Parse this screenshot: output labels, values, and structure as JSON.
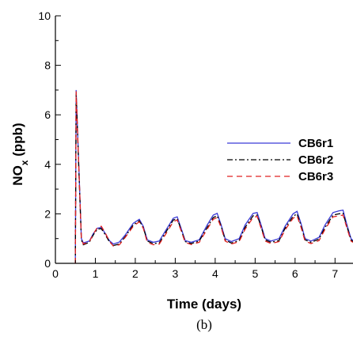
{
  "panel_label": "(b)",
  "chart_data": {
    "type": "line",
    "title": "",
    "xlabel": "Time (days)",
    "ylabel": "NOx (ppb)",
    "ylabel_main": "NO",
    "ylabel_sub": "x",
    "ylabel_unit": " (ppb)",
    "xlim": [
      0,
      7.45
    ],
    "ylim": [
      0,
      10
    ],
    "xticks": [
      0,
      1,
      2,
      3,
      4,
      5,
      6,
      7
    ],
    "yticks": [
      0,
      2,
      4,
      6,
      8,
      10
    ],
    "grid": false,
    "legend_position": "right-center",
    "series": [
      {
        "name": "CB6r1",
        "color": "#3b3bd6",
        "dash": "solid",
        "points": [
          [
            0.5,
            0
          ],
          [
            0.52,
            7.0
          ],
          [
            0.65,
            1.0
          ],
          [
            0.7,
            0.82
          ],
          [
            0.85,
            0.9
          ],
          [
            0.95,
            1.2
          ],
          [
            1.05,
            1.42
          ],
          [
            1.15,
            1.45
          ],
          [
            1.25,
            1.2
          ],
          [
            1.35,
            0.92
          ],
          [
            1.45,
            0.78
          ],
          [
            1.6,
            0.86
          ],
          [
            1.75,
            1.15
          ],
          [
            1.95,
            1.62
          ],
          [
            2.1,
            1.78
          ],
          [
            2.2,
            1.5
          ],
          [
            2.3,
            0.95
          ],
          [
            2.45,
            0.85
          ],
          [
            2.6,
            0.9
          ],
          [
            2.75,
            1.3
          ],
          [
            2.95,
            1.82
          ],
          [
            3.05,
            1.88
          ],
          [
            3.15,
            1.4
          ],
          [
            3.25,
            0.92
          ],
          [
            3.4,
            0.85
          ],
          [
            3.6,
            0.95
          ],
          [
            3.8,
            1.55
          ],
          [
            3.95,
            1.95
          ],
          [
            4.05,
            2.02
          ],
          [
            4.15,
            1.55
          ],
          [
            4.25,
            1.0
          ],
          [
            4.4,
            0.88
          ],
          [
            4.6,
            1.0
          ],
          [
            4.75,
            1.55
          ],
          [
            4.95,
            2.02
          ],
          [
            5.05,
            2.05
          ],
          [
            5.15,
            1.55
          ],
          [
            5.25,
            1.0
          ],
          [
            5.4,
            0.9
          ],
          [
            5.6,
            1.0
          ],
          [
            5.75,
            1.5
          ],
          [
            5.95,
            2.0
          ],
          [
            6.05,
            2.1
          ],
          [
            6.15,
            1.6
          ],
          [
            6.25,
            1.0
          ],
          [
            6.4,
            0.9
          ],
          [
            6.6,
            1.05
          ],
          [
            6.75,
            1.55
          ],
          [
            6.95,
            2.05
          ],
          [
            7.1,
            2.12
          ],
          [
            7.2,
            2.15
          ],
          [
            7.3,
            1.55
          ],
          [
            7.4,
            1.0
          ],
          [
            7.45,
            0.92
          ]
        ]
      },
      {
        "name": "CB6r2",
        "color": "#000000",
        "dash": "dashdot",
        "points": [
          [
            0.5,
            0
          ],
          [
            0.52,
            6.85
          ],
          [
            0.65,
            0.95
          ],
          [
            0.7,
            0.75
          ],
          [
            0.85,
            0.85
          ],
          [
            0.95,
            1.15
          ],
          [
            1.05,
            1.38
          ],
          [
            1.15,
            1.4
          ],
          [
            1.25,
            1.15
          ],
          [
            1.35,
            0.88
          ],
          [
            1.45,
            0.72
          ],
          [
            1.6,
            0.78
          ],
          [
            1.75,
            1.08
          ],
          [
            1.95,
            1.55
          ],
          [
            2.1,
            1.72
          ],
          [
            2.2,
            1.45
          ],
          [
            2.3,
            0.9
          ],
          [
            2.45,
            0.8
          ],
          [
            2.6,
            0.82
          ],
          [
            2.75,
            1.22
          ],
          [
            2.95,
            1.75
          ],
          [
            3.05,
            1.8
          ],
          [
            3.15,
            1.35
          ],
          [
            3.25,
            0.88
          ],
          [
            3.4,
            0.8
          ],
          [
            3.6,
            0.9
          ],
          [
            3.8,
            1.45
          ],
          [
            3.95,
            1.85
          ],
          [
            4.05,
            1.92
          ],
          [
            4.15,
            1.5
          ],
          [
            4.25,
            0.95
          ],
          [
            4.4,
            0.82
          ],
          [
            4.6,
            0.92
          ],
          [
            4.75,
            1.45
          ],
          [
            4.95,
            1.92
          ],
          [
            5.05,
            1.95
          ],
          [
            5.15,
            1.48
          ],
          [
            5.25,
            0.95
          ],
          [
            5.4,
            0.85
          ],
          [
            5.6,
            0.92
          ],
          [
            5.75,
            1.42
          ],
          [
            5.95,
            1.9
          ],
          [
            6.05,
            2.0
          ],
          [
            6.15,
            1.52
          ],
          [
            6.25,
            0.95
          ],
          [
            6.4,
            0.85
          ],
          [
            6.6,
            0.98
          ],
          [
            6.75,
            1.45
          ],
          [
            6.95,
            1.95
          ],
          [
            7.1,
            2.0
          ],
          [
            7.2,
            2.02
          ],
          [
            7.3,
            1.48
          ],
          [
            7.4,
            0.95
          ],
          [
            7.45,
            0.88
          ]
        ]
      },
      {
        "name": "CB6r3",
        "color": "#e02020",
        "dash": "dashed",
        "points": [
          [
            0.5,
            0
          ],
          [
            0.52,
            6.95
          ],
          [
            0.65,
            0.98
          ],
          [
            0.7,
            0.78
          ],
          [
            0.85,
            0.88
          ],
          [
            0.95,
            1.18
          ],
          [
            1.05,
            1.45
          ],
          [
            1.15,
            1.5
          ],
          [
            1.25,
            1.22
          ],
          [
            1.35,
            0.9
          ],
          [
            1.45,
            0.7
          ],
          [
            1.6,
            0.75
          ],
          [
            1.75,
            1.05
          ],
          [
            1.95,
            1.5
          ],
          [
            2.1,
            1.68
          ],
          [
            2.2,
            1.42
          ],
          [
            2.3,
            0.85
          ],
          [
            2.45,
            0.75
          ],
          [
            2.6,
            0.78
          ],
          [
            2.75,
            1.15
          ],
          [
            2.95,
            1.68
          ],
          [
            3.05,
            1.75
          ],
          [
            3.15,
            1.3
          ],
          [
            3.25,
            0.85
          ],
          [
            3.4,
            0.76
          ],
          [
            3.6,
            0.85
          ],
          [
            3.8,
            1.38
          ],
          [
            3.95,
            1.78
          ],
          [
            4.05,
            1.85
          ],
          [
            4.15,
            1.45
          ],
          [
            4.25,
            0.9
          ],
          [
            4.4,
            0.78
          ],
          [
            4.6,
            0.88
          ],
          [
            4.75,
            1.38
          ],
          [
            4.95,
            1.85
          ],
          [
            5.05,
            1.9
          ],
          [
            5.15,
            1.42
          ],
          [
            5.25,
            0.9
          ],
          [
            5.4,
            0.8
          ],
          [
            5.6,
            0.88
          ],
          [
            5.75,
            1.35
          ],
          [
            5.95,
            1.82
          ],
          [
            6.05,
            1.92
          ],
          [
            6.15,
            1.45
          ],
          [
            6.25,
            0.9
          ],
          [
            6.4,
            0.8
          ],
          [
            6.6,
            0.92
          ],
          [
            6.75,
            1.38
          ],
          [
            6.95,
            1.88
          ],
          [
            7.1,
            1.92
          ],
          [
            7.2,
            1.95
          ],
          [
            7.3,
            1.42
          ],
          [
            7.4,
            0.9
          ],
          [
            7.45,
            0.85
          ]
        ]
      }
    ]
  }
}
